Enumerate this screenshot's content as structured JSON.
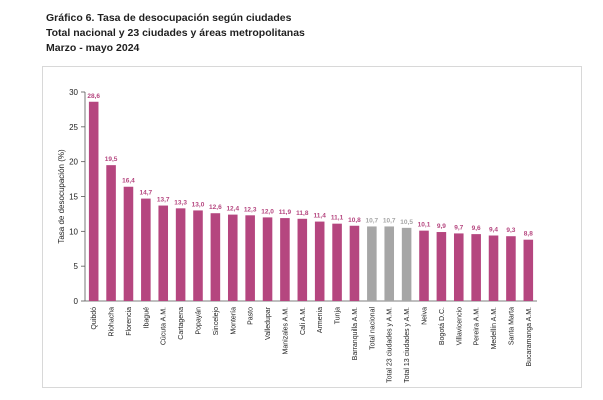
{
  "header": {
    "title": "Gráfico 6. Tasa de desocupación según ciudades",
    "subtitle": "Total nacional y 23 ciudades y áreas metropolitanas",
    "period": "Marzo - mayo 2024"
  },
  "colors": {
    "city": "#b5467f",
    "aggregate": "#a6a6a6",
    "axis": "#555555"
  },
  "chart_data": {
    "type": "bar",
    "title": "Gráfico 6. Tasa de desocupación según ciudades",
    "ylabel": "Tasa de desocupación (%)",
    "xlabel": "",
    "ylim": [
      0,
      30
    ],
    "yticks": [
      0,
      5,
      10,
      15,
      20,
      25,
      30
    ],
    "grid": false,
    "categories": [
      "Quibdó",
      "Riohacha",
      "Florencia",
      "Ibagué",
      "Cúcuta A.M.",
      "Cartagena",
      "Popayán",
      "Sincelejo",
      "Montería",
      "Pasto",
      "Valledupar",
      "Manizales A.M.",
      "Cali A.M.",
      "Armenia",
      "Tunja",
      "Barranquilla A.M.",
      "Total nacional",
      "Total 23 ciudades y A.M.",
      "Total 13 ciudades y A.M.",
      "Neiva",
      "Bogotá D.C.",
      "Villavicencio",
      "Pereira A.M.",
      "Medellín A.M.",
      "Santa Marta",
      "Bucaramanga A.M."
    ],
    "values": [
      28.6,
      19.5,
      16.4,
      14.7,
      13.7,
      13.3,
      13.0,
      12.6,
      12.4,
      12.3,
      12.0,
      11.9,
      11.8,
      11.4,
      11.1,
      10.8,
      10.7,
      10.7,
      10.5,
      10.1,
      9.9,
      9.7,
      9.6,
      9.4,
      9.3,
      8.8
    ],
    "value_labels": [
      "28,6",
      "19,5",
      "16,4",
      "14,7",
      "13,7",
      "13,3",
      "13,0",
      "12,6",
      "12,4",
      "12,3",
      "12,0",
      "11,9",
      "11,8",
      "11,4",
      "11,1",
      "10,8",
      "10,7",
      "10,7",
      "10,5",
      "10,1",
      "9,9",
      "9,7",
      "9,6",
      "9,4",
      "9,3",
      "8,8"
    ],
    "aggregate_categories": [
      "Total nacional",
      "Total 23 ciudades y A.M.",
      "Total 13 ciudades y A.M."
    ]
  }
}
